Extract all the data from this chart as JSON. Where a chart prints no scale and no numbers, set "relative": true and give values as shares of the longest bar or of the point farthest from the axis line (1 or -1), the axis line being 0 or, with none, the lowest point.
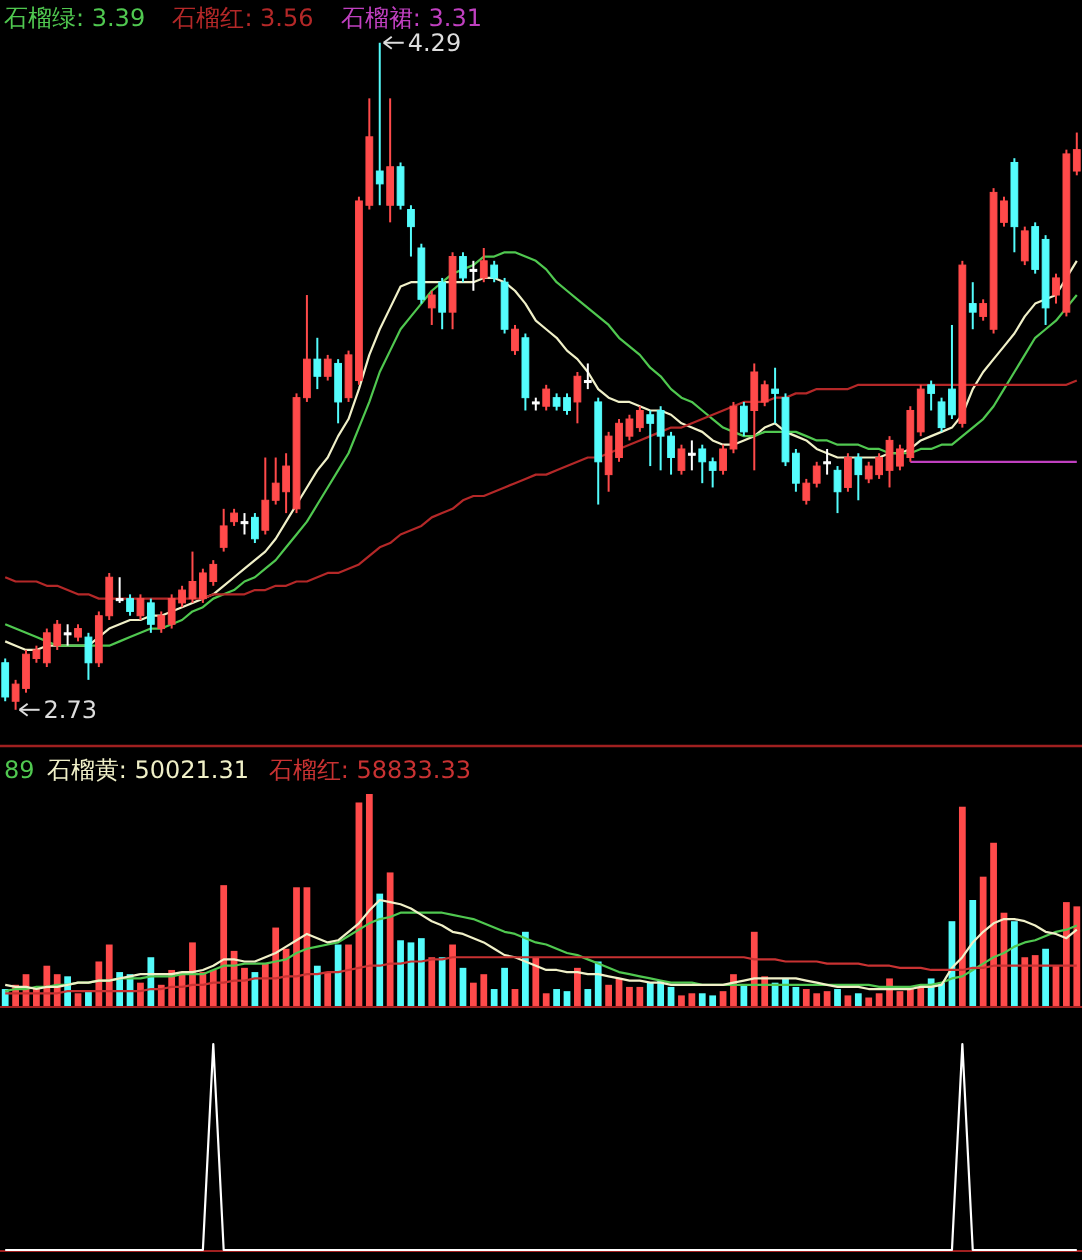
{
  "chart_data": [
    {
      "type": "candlestick",
      "ylim": [
        2.65,
        4.39
      ],
      "categories": [
        null,
        null,
        null,
        null,
        null,
        null,
        null,
        null,
        null,
        null,
        null,
        null,
        null,
        null,
        null,
        null,
        null,
        null,
        null,
        null,
        null,
        null,
        null,
        null,
        null,
        null,
        null,
        null,
        null,
        null,
        null,
        null,
        null,
        null,
        null,
        null,
        null,
        null,
        null,
        null,
        null,
        null,
        null,
        null,
        null,
        null,
        null,
        null,
        null,
        null,
        null,
        null,
        null,
        null,
        null,
        null,
        null,
        null,
        null,
        null,
        null,
        null,
        null,
        null,
        null,
        null,
        null,
        null,
        null,
        null,
        null,
        null,
        null,
        null,
        null,
        null,
        null,
        null,
        null,
        null,
        null,
        null,
        null,
        null,
        null,
        null,
        null,
        null,
        null,
        null,
        null,
        null,
        null,
        null,
        null,
        null,
        null,
        null,
        null,
        null,
        null,
        null,
        null,
        null
      ],
      "ohlc": [
        [
          2.84,
          2.85,
          2.75,
          2.76
        ],
        [
          2.75,
          2.8,
          2.73,
          2.79
        ],
        [
          2.78,
          2.87,
          2.77,
          2.86
        ],
        [
          2.85,
          2.88,
          2.84,
          2.87
        ],
        [
          2.84,
          2.92,
          2.83,
          2.91
        ],
        [
          2.88,
          2.94,
          2.87,
          2.93
        ],
        [
          2.91,
          2.93,
          2.88,
          2.91
        ],
        [
          2.9,
          2.93,
          2.89,
          2.92
        ],
        [
          2.9,
          2.91,
          2.8,
          2.84
        ],
        [
          2.84,
          2.96,
          2.83,
          2.95
        ],
        [
          2.95,
          3.05,
          2.94,
          3.04
        ],
        [
          2.99,
          3.04,
          2.98,
          2.99
        ],
        [
          2.99,
          3.0,
          2.95,
          2.96
        ],
        [
          2.95,
          3.0,
          2.94,
          2.99
        ],
        [
          2.98,
          2.99,
          2.91,
          2.93
        ],
        [
          2.92,
          2.96,
          2.91,
          2.95
        ],
        [
          2.93,
          3.0,
          2.92,
          2.99
        ],
        [
          2.98,
          3.02,
          2.97,
          3.01
        ],
        [
          2.99,
          3.1,
          2.98,
          3.03
        ],
        [
          2.99,
          3.06,
          2.98,
          3.05
        ],
        [
          3.03,
          3.08,
          3.02,
          3.07
        ],
        [
          3.11,
          3.2,
          3.1,
          3.16
        ],
        [
          3.17,
          3.2,
          3.16,
          3.19
        ],
        [
          3.17,
          3.19,
          3.14,
          3.17
        ],
        [
          3.18,
          3.19,
          3.12,
          3.13
        ],
        [
          3.15,
          3.32,
          3.14,
          3.22
        ],
        [
          3.22,
          3.32,
          3.21,
          3.26
        ],
        [
          3.24,
          3.33,
          3.19,
          3.3
        ],
        [
          3.2,
          3.47,
          3.19,
          3.46
        ],
        [
          3.46,
          3.7,
          3.45,
          3.55
        ],
        [
          3.55,
          3.6,
          3.48,
          3.51
        ],
        [
          3.51,
          3.56,
          3.5,
          3.55
        ],
        [
          3.54,
          3.55,
          3.4,
          3.45
        ],
        [
          3.46,
          3.57,
          3.45,
          3.56
        ],
        [
          3.5,
          3.93,
          3.49,
          3.92
        ],
        [
          3.91,
          4.16,
          3.9,
          4.07
        ],
        [
          3.99,
          4.29,
          3.91,
          3.96
        ],
        [
          3.91,
          4.16,
          3.87,
          4.0
        ],
        [
          4.0,
          4.01,
          3.9,
          3.91
        ],
        [
          3.9,
          3.91,
          3.79,
          3.86
        ],
        [
          3.81,
          3.82,
          3.68,
          3.69
        ],
        [
          3.67,
          3.71,
          3.63,
          3.7
        ],
        [
          3.73,
          3.74,
          3.62,
          3.66
        ],
        [
          3.66,
          3.8,
          3.62,
          3.79
        ],
        [
          3.79,
          3.8,
          3.73,
          3.74
        ],
        [
          3.76,
          3.78,
          3.71,
          3.76
        ],
        [
          3.74,
          3.81,
          3.73,
          3.78
        ],
        [
          3.77,
          3.78,
          3.73,
          3.74
        ],
        [
          3.73,
          3.74,
          3.61,
          3.62
        ],
        [
          3.57,
          3.63,
          3.56,
          3.62
        ],
        [
          3.6,
          3.61,
          3.43,
          3.46
        ],
        [
          3.45,
          3.46,
          3.43,
          3.45
        ],
        [
          3.44,
          3.49,
          3.43,
          3.48
        ],
        [
          3.46,
          3.47,
          3.43,
          3.44
        ],
        [
          3.46,
          3.47,
          3.42,
          3.43
        ],
        [
          3.45,
          3.52,
          3.4,
          3.51
        ],
        [
          3.5,
          3.54,
          3.48,
          3.5
        ],
        [
          3.45,
          3.46,
          3.21,
          3.31
        ],
        [
          3.28,
          3.38,
          3.24,
          3.37
        ],
        [
          3.32,
          3.41,
          3.31,
          3.4
        ],
        [
          3.37,
          3.42,
          3.36,
          3.41
        ],
        [
          3.39,
          3.44,
          3.38,
          3.43
        ],
        [
          3.42,
          3.43,
          3.3,
          3.4
        ],
        [
          3.43,
          3.44,
          3.29,
          3.37
        ],
        [
          3.37,
          3.38,
          3.28,
          3.32
        ],
        [
          3.29,
          3.35,
          3.28,
          3.34
        ],
        [
          3.33,
          3.36,
          3.29,
          3.33
        ],
        [
          3.34,
          3.35,
          3.26,
          3.31
        ],
        [
          3.31,
          3.32,
          3.25,
          3.29
        ],
        [
          3.29,
          3.35,
          3.28,
          3.34
        ],
        [
          3.34,
          3.45,
          3.33,
          3.44
        ],
        [
          3.44,
          3.45,
          3.37,
          3.38
        ],
        [
          3.43,
          3.54,
          3.29,
          3.52
        ],
        [
          3.45,
          3.5,
          3.44,
          3.49
        ],
        [
          3.48,
          3.53,
          3.4,
          3.47
        ],
        [
          3.46,
          3.47,
          3.3,
          3.31
        ],
        [
          3.33,
          3.34,
          3.24,
          3.26
        ],
        [
          3.22,
          3.27,
          3.21,
          3.26
        ],
        [
          3.26,
          3.31,
          3.25,
          3.3
        ],
        [
          3.31,
          3.34,
          3.28,
          3.31
        ],
        [
          3.29,
          3.3,
          3.19,
          3.24
        ],
        [
          3.25,
          3.33,
          3.24,
          3.32
        ],
        [
          3.32,
          3.33,
          3.22,
          3.28
        ],
        [
          3.27,
          3.31,
          3.26,
          3.3
        ],
        [
          3.28,
          3.33,
          3.27,
          3.32
        ],
        [
          3.29,
          3.37,
          3.25,
          3.36
        ],
        [
          3.3,
          3.35,
          3.29,
          3.34
        ],
        [
          3.32,
          3.44,
          3.31,
          3.43
        ],
        [
          3.38,
          3.49,
          3.37,
          3.48
        ],
        [
          3.49,
          3.5,
          3.43,
          3.47
        ],
        [
          3.45,
          3.46,
          3.38,
          3.39
        ],
        [
          3.48,
          3.63,
          3.41,
          3.42
        ],
        [
          3.4,
          3.78,
          3.39,
          3.77
        ],
        [
          3.68,
          3.73,
          3.62,
          3.66
        ],
        [
          3.65,
          3.69,
          3.64,
          3.68
        ],
        [
          3.62,
          3.95,
          3.61,
          3.94
        ],
        [
          3.87,
          3.93,
          3.86,
          3.92
        ],
        [
          4.01,
          4.02,
          3.8,
          3.86
        ],
        [
          3.78,
          3.86,
          3.77,
          3.85
        ],
        [
          3.86,
          3.87,
          3.75,
          3.76
        ],
        [
          3.83,
          3.84,
          3.63,
          3.67
        ],
        [
          3.7,
          3.75,
          3.68,
          3.74
        ],
        [
          3.66,
          4.04,
          3.65,
          4.03
        ],
        [
          3.99,
          4.08,
          3.98,
          4.04
        ]
      ],
      "series": [
        {
          "type": "line",
          "color": "#f0f0c8",
          "values": [
            2.89,
            2.88,
            2.87,
            2.87,
            2.88,
            2.88,
            2.88,
            2.88,
            2.88,
            2.9,
            2.92,
            2.93,
            2.94,
            2.94,
            2.95,
            2.95,
            2.96,
            2.97,
            2.98,
            2.99,
            3.0,
            3.02,
            3.04,
            3.06,
            3.08,
            3.1,
            3.13,
            3.17,
            3.21,
            3.25,
            3.29,
            3.32,
            3.37,
            3.41,
            3.48,
            3.56,
            3.62,
            3.67,
            3.72,
            3.73,
            3.73,
            3.73,
            3.73,
            3.73,
            3.73,
            3.73,
            3.74,
            3.74,
            3.73,
            3.71,
            3.68,
            3.64,
            3.62,
            3.6,
            3.57,
            3.55,
            3.52,
            3.48,
            3.46,
            3.45,
            3.45,
            3.44,
            3.43,
            3.43,
            3.42,
            3.4,
            3.39,
            3.38,
            3.36,
            3.35,
            3.35,
            3.36,
            3.37,
            3.39,
            3.4,
            3.38,
            3.37,
            3.36,
            3.34,
            3.33,
            3.32,
            3.32,
            3.32,
            3.32,
            3.32,
            3.33,
            3.33,
            3.34,
            3.36,
            3.37,
            3.38,
            3.39,
            3.42,
            3.48,
            3.52,
            3.55,
            3.58,
            3.61,
            3.65,
            3.68,
            3.69,
            3.7,
            3.74,
            3.78
          ]
        },
        {
          "type": "line",
          "name": "石榴绿: 3.39",
          "color": "#50c850",
          "values": [
            2.93,
            2.92,
            2.91,
            2.9,
            2.89,
            2.88,
            2.88,
            2.88,
            2.88,
            2.88,
            2.88,
            2.89,
            2.9,
            2.91,
            2.92,
            2.92,
            2.93,
            2.94,
            2.96,
            2.97,
            2.99,
            3.0,
            3.01,
            3.03,
            3.04,
            3.06,
            3.08,
            3.11,
            3.14,
            3.17,
            3.21,
            3.25,
            3.29,
            3.33,
            3.39,
            3.45,
            3.52,
            3.57,
            3.62,
            3.65,
            3.68,
            3.71,
            3.73,
            3.75,
            3.76,
            3.77,
            3.79,
            3.79,
            3.8,
            3.8,
            3.79,
            3.78,
            3.76,
            3.73,
            3.71,
            3.69,
            3.67,
            3.65,
            3.63,
            3.6,
            3.58,
            3.56,
            3.53,
            3.51,
            3.48,
            3.46,
            3.45,
            3.43,
            3.41,
            3.39,
            3.38,
            3.37,
            3.37,
            3.38,
            3.38,
            3.38,
            3.38,
            3.37,
            3.36,
            3.36,
            3.35,
            3.35,
            3.35,
            3.34,
            3.34,
            3.33,
            3.33,
            3.33,
            3.34,
            3.34,
            3.35,
            3.35,
            3.37,
            3.39,
            3.41,
            3.44,
            3.48,
            3.52,
            3.56,
            3.6,
            3.62,
            3.64,
            3.67,
            3.7
          ]
        },
        {
          "type": "line",
          "name": "石榴红: 3.56",
          "color": "#b42828",
          "values": [
            3.04,
            3.03,
            3.03,
            3.03,
            3.02,
            3.02,
            3.01,
            3.0,
            3.0,
            2.99,
            2.99,
            2.99,
            2.99,
            2.99,
            2.99,
            2.99,
            2.99,
            2.99,
            2.99,
            2.99,
            3.0,
            3.0,
            3.0,
            3.0,
            3.01,
            3.01,
            3.02,
            3.02,
            3.03,
            3.03,
            3.04,
            3.05,
            3.05,
            3.06,
            3.07,
            3.09,
            3.11,
            3.12,
            3.14,
            3.15,
            3.16,
            3.18,
            3.19,
            3.2,
            3.22,
            3.23,
            3.23,
            3.24,
            3.25,
            3.26,
            3.27,
            3.28,
            3.28,
            3.29,
            3.3,
            3.31,
            3.32,
            3.32,
            3.33,
            3.34,
            3.35,
            3.36,
            3.37,
            3.38,
            3.39,
            3.39,
            3.4,
            3.41,
            3.42,
            3.43,
            3.44,
            3.45,
            3.45,
            3.45,
            3.46,
            3.46,
            3.47,
            3.47,
            3.48,
            3.48,
            3.48,
            3.48,
            3.49,
            3.49,
            3.49,
            3.49,
            3.49,
            3.49,
            3.49,
            3.49,
            3.49,
            3.49,
            3.49,
            3.49,
            3.49,
            3.49,
            3.49,
            3.49,
            3.49,
            3.49,
            3.49,
            3.49,
            3.49,
            3.5
          ]
        },
        {
          "type": "line",
          "name": "石榴裙: 3.31",
          "color": "#c040c0",
          "values": [
            null,
            null,
            null,
            null,
            null,
            null,
            null,
            null,
            null,
            null,
            null,
            null,
            null,
            null,
            null,
            null,
            null,
            null,
            null,
            null,
            null,
            null,
            null,
            null,
            null,
            null,
            null,
            null,
            null,
            null,
            null,
            null,
            null,
            null,
            null,
            null,
            null,
            null,
            null,
            null,
            null,
            null,
            null,
            null,
            null,
            null,
            null,
            null,
            null,
            null,
            null,
            null,
            null,
            null,
            null,
            null,
            null,
            null,
            null,
            null,
            null,
            null,
            null,
            null,
            null,
            null,
            null,
            null,
            null,
            null,
            null,
            null,
            null,
            null,
            null,
            null,
            null,
            null,
            null,
            null,
            null,
            null,
            null,
            null,
            null,
            null,
            null,
            3.31,
            3.31,
            3.31,
            3.31,
            3.31,
            3.31,
            3.31,
            3.31,
            3.31,
            3.31,
            3.31,
            3.31,
            3.31,
            3.31,
            3.31,
            3.31,
            3.31
          ]
        }
      ],
      "annotations": [
        "4.29",
        "2.73"
      ]
    },
    {
      "type": "bar",
      "relative": true,
      "categories": [
        null,
        null,
        null,
        null,
        null,
        null,
        null,
        null,
        null,
        null,
        null,
        null,
        null,
        null,
        null,
        null,
        null,
        null,
        null,
        null,
        null,
        null,
        null,
        null,
        null,
        null,
        null,
        null,
        null,
        null,
        null,
        null,
        null,
        null,
        null,
        null,
        null,
        null,
        null,
        null,
        null,
        null,
        null,
        null,
        null,
        null,
        null,
        null,
        null,
        null,
        null,
        null,
        null,
        null,
        null,
        null,
        null,
        null,
        null,
        null,
        null,
        null,
        null,
        null,
        null,
        null,
        null,
        null,
        null,
        null,
        null,
        null,
        null,
        null,
        null,
        null,
        null,
        null,
        null,
        null,
        null,
        null,
        null,
        null,
        null,
        null,
        null,
        null,
        null,
        null,
        null,
        null,
        null,
        null,
        null,
        null,
        null,
        null,
        null,
        null,
        null,
        null,
        null,
        null
      ],
      "series": [
        {
          "values": [
            0.08,
            0.1,
            0.15,
            0.08,
            0.19,
            0.15,
            0.14,
            0.06,
            0.07,
            0.21,
            0.29,
            0.16,
            0.15,
            0.11,
            0.23,
            0.1,
            0.17,
            0.15,
            0.3,
            0.16,
            0.17,
            0.57,
            0.26,
            0.18,
            0.16,
            0.2,
            0.37,
            0.27,
            0.56,
            0.56,
            0.19,
            0.16,
            0.29,
            0.29,
            0.96,
            1,
            0.53,
            0.63,
            0.31,
            0.3,
            0.32,
            0.23,
            0.23,
            0.29,
            0.18,
            0.11,
            0.15,
            0.08,
            0.18,
            0.08,
            0.35,
            0.23,
            0.06,
            0.08,
            0.07,
            0.18,
            0.08,
            0.21,
            0.1,
            0.13,
            0.09,
            0.09,
            0.11,
            0.12,
            0.09,
            0.05,
            0.06,
            0.06,
            0.05,
            0.07,
            0.15,
            0.1,
            0.35,
            0.14,
            0.11,
            0.13,
            0.09,
            0.08,
            0.06,
            0.07,
            0.08,
            0.05,
            0.06,
            0.04,
            0.06,
            0.13,
            0.07,
            0.08,
            0.09,
            0.13,
            0.11,
            0.4,
            0.94,
            0.5,
            0.61,
            0.77,
            0.44,
            0.4,
            0.23,
            0.24,
            0.27,
            0.19,
            0.49,
            0.47
          ],
          "colors": [
            "#54fcfc",
            "#ff4a4a",
            "#ff4a4a",
            "#ff4a4a",
            "#ff4a4a",
            "#ff4a4a",
            "#54fcfc",
            "#ff4a4a",
            "#54fcfc",
            "#ff4a4a",
            "#ff4a4a",
            "#54fcfc",
            "#54fcfc",
            "#ff4a4a",
            "#54fcfc",
            "#ff4a4a",
            "#ff4a4a",
            "#ff4a4a",
            "#ff4a4a",
            "#ff4a4a",
            "#ff4a4a",
            "#ff4a4a",
            "#ff4a4a",
            "#ff4a4a",
            "#54fcfc",
            "#ff4a4a",
            "#ff4a4a",
            "#ff4a4a",
            "#ff4a4a",
            "#ff4a4a",
            "#54fcfc",
            "#ff4a4a",
            "#54fcfc",
            "#ff4a4a",
            "#ff4a4a",
            "#ff4a4a",
            "#54fcfc",
            "#ff4a4a",
            "#54fcfc",
            "#54fcfc",
            "#54fcfc",
            "#ff4a4a",
            "#54fcfc",
            "#ff4a4a",
            "#54fcfc",
            "#ff4a4a",
            "#ff4a4a",
            "#54fcfc",
            "#54fcfc",
            "#ff4a4a",
            "#54fcfc",
            "#ff4a4a",
            "#ff4a4a",
            "#54fcfc",
            "#54fcfc",
            "#ff4a4a",
            "#54fcfc",
            "#54fcfc",
            "#ff4a4a",
            "#ff4a4a",
            "#ff4a4a",
            "#ff4a4a",
            "#54fcfc",
            "#54fcfc",
            "#54fcfc",
            "#ff4a4a",
            "#ff4a4a",
            "#54fcfc",
            "#54fcfc",
            "#ff4a4a",
            "#ff4a4a",
            "#54fcfc",
            "#ff4a4a",
            "#ff4a4a",
            "#54fcfc",
            "#54fcfc",
            "#54fcfc",
            "#ff4a4a",
            "#ff4a4a",
            "#ff4a4a",
            "#54fcfc",
            "#ff4a4a",
            "#54fcfc",
            "#ff4a4a",
            "#ff4a4a",
            "#ff4a4a",
            "#ff4a4a",
            "#ff4a4a",
            "#ff4a4a",
            "#54fcfc",
            "#54fcfc",
            "#54fcfc",
            "#ff4a4a",
            "#54fcfc",
            "#ff4a4a",
            "#ff4a4a",
            "#ff4a4a",
            "#54fcfc",
            "#ff4a4a",
            "#ff4a4a",
            "#54fcfc",
            "#ff4a4a",
            "#ff4a4a",
            "#ff4a4a"
          ]
        },
        {
          "type": "line",
          "name": "89",
          "color": "#50c850",
          "values": [
            0.07,
            0.08,
            0.08,
            0.09,
            0.09,
            0.1,
            0.1,
            0.11,
            0.11,
            0.12,
            0.12,
            0.13,
            0.13,
            0.13,
            0.14,
            0.14,
            0.14,
            0.15,
            0.15,
            0.15,
            0.17,
            0.19,
            0.19,
            0.2,
            0.2,
            0.2,
            0.21,
            0.22,
            0.25,
            0.27,
            0.28,
            0.29,
            0.3,
            0.33,
            0.36,
            0.39,
            0.41,
            0.42,
            0.44,
            0.44,
            0.44,
            0.44,
            0.44,
            0.43,
            0.42,
            0.41,
            0.39,
            0.37,
            0.35,
            0.34,
            0.32,
            0.3,
            0.29,
            0.27,
            0.25,
            0.24,
            0.22,
            0.2,
            0.18,
            0.16,
            0.15,
            0.14,
            0.13,
            0.12,
            0.11,
            0.11,
            0.11,
            0.1,
            0.1,
            0.1,
            0.1,
            0.1,
            0.1,
            0.1,
            0.1,
            0.1,
            0.1,
            0.1,
            0.1,
            0.1,
            0.1,
            0.1,
            0.1,
            0.1,
            0.09,
            0.09,
            0.09,
            0.09,
            0.1,
            0.1,
            0.11,
            0.13,
            0.14,
            0.17,
            0.2,
            0.23,
            0.25,
            0.28,
            0.3,
            0.31,
            0.33,
            0.35,
            0.36,
            0.38
          ]
        },
        {
          "type": "line",
          "name": "石榴黄: 50021.31",
          "color": "#f0f0c8",
          "values": [
            0.1,
            0.09,
            0.09,
            0.08,
            0.09,
            0.09,
            0.1,
            0.11,
            0.11,
            0.12,
            0.12,
            0.13,
            0.14,
            0.15,
            0.15,
            0.15,
            0.15,
            0.16,
            0.16,
            0.17,
            0.19,
            0.22,
            0.22,
            0.21,
            0.21,
            0.23,
            0.25,
            0.28,
            0.31,
            0.34,
            0.32,
            0.3,
            0.31,
            0.35,
            0.39,
            0.45,
            0.5,
            0.49,
            0.48,
            0.46,
            0.43,
            0.4,
            0.38,
            0.35,
            0.34,
            0.32,
            0.3,
            0.27,
            0.24,
            0.23,
            0.21,
            0.19,
            0.17,
            0.17,
            0.16,
            0.16,
            0.15,
            0.15,
            0.14,
            0.13,
            0.12,
            0.12,
            0.11,
            0.11,
            0.1,
            0.1,
            0.1,
            0.1,
            0.1,
            0.1,
            0.11,
            0.12,
            0.13,
            0.13,
            0.13,
            0.13,
            0.13,
            0.12,
            0.11,
            0.1,
            0.09,
            0.09,
            0.09,
            0.08,
            0.08,
            0.08,
            0.08,
            0.08,
            0.09,
            0.09,
            0.1,
            0.18,
            0.23,
            0.3,
            0.35,
            0.39,
            0.41,
            0.41,
            0.4,
            0.38,
            0.35,
            0.34,
            0.32,
            0.36
          ]
        },
        {
          "type": "line",
          "name": "石榴红: 58833.33",
          "color": "#c83232",
          "values": [
            0.06,
            0.06,
            0.06,
            0.06,
            0.06,
            0.06,
            0.07,
            0.07,
            0.07,
            0.07,
            0.07,
            0.07,
            0.07,
            0.07,
            0.08,
            0.08,
            0.09,
            0.09,
            0.1,
            0.1,
            0.11,
            0.11,
            0.12,
            0.12,
            0.13,
            0.13,
            0.13,
            0.14,
            0.14,
            0.15,
            0.15,
            0.16,
            0.16,
            0.17,
            0.18,
            0.19,
            0.19,
            0.2,
            0.2,
            0.21,
            0.21,
            0.22,
            0.22,
            0.23,
            0.23,
            0.23,
            0.23,
            0.23,
            0.23,
            0.23,
            0.23,
            0.23,
            0.23,
            0.23,
            0.23,
            0.23,
            0.23,
            0.23,
            0.23,
            0.23,
            0.23,
            0.23,
            0.23,
            0.23,
            0.23,
            0.23,
            0.23,
            0.23,
            0.23,
            0.23,
            0.23,
            0.23,
            0.22,
            0.22,
            0.22,
            0.21,
            0.21,
            0.21,
            0.21,
            0.2,
            0.2,
            0.2,
            0.2,
            0.19,
            0.19,
            0.19,
            0.18,
            0.18,
            0.18,
            0.17,
            0.17,
            0.17,
            0.17,
            0.18,
            0.18,
            0.19,
            0.19,
            0.19,
            0.19,
            0.19,
            0.19,
            0.19,
            0.19,
            0.19
          ]
        }
      ]
    },
    {
      "type": "line",
      "relative": true,
      "categories": [
        null,
        null,
        null,
        null,
        null,
        null,
        null,
        null,
        null,
        null,
        null,
        null,
        null,
        null,
        null,
        null,
        null,
        null,
        null,
        null,
        null,
        null,
        null,
        null,
        null,
        null,
        null,
        null,
        null,
        null,
        null,
        null,
        null,
        null,
        null,
        null,
        null,
        null,
        null,
        null,
        null,
        null,
        null,
        null,
        null,
        null,
        null,
        null,
        null,
        null,
        null,
        null,
        null,
        null,
        null,
        null,
        null,
        null,
        null,
        null,
        null,
        null,
        null,
        null,
        null,
        null,
        null,
        null,
        null,
        null,
        null,
        null,
        null,
        null,
        null,
        null,
        null,
        null,
        null,
        null,
        null,
        null,
        null,
        null,
        null,
        null,
        null,
        null,
        null,
        null,
        null,
        null,
        null,
        null,
        null,
        null,
        null,
        null,
        null,
        null,
        null,
        null,
        null,
        null
      ],
      "series": [
        {
          "color": "#ffffff",
          "values": [
            0,
            0,
            0,
            0,
            0,
            0,
            0,
            0,
            0,
            0,
            0,
            0,
            0,
            0,
            0,
            0,
            0,
            0,
            0,
            0,
            1,
            0,
            0,
            0,
            0,
            0,
            0,
            0,
            0,
            0,
            0,
            0,
            0,
            0,
            0,
            0,
            0,
            0,
            0,
            0,
            0,
            0,
            0,
            0,
            0,
            0,
            0,
            0,
            0,
            0,
            0,
            0,
            0,
            0,
            0,
            0,
            0,
            0,
            0,
            0,
            0,
            0,
            0,
            0,
            0,
            0,
            0,
            0,
            0,
            0,
            0,
            0,
            0,
            0,
            0,
            0,
            0,
            0,
            0,
            0,
            0,
            0,
            0,
            0,
            0,
            0,
            0,
            0,
            0,
            0,
            0,
            0,
            1,
            0,
            0,
            0,
            0,
            0,
            0,
            0,
            0,
            0,
            0,
            0
          ]
        }
      ]
    }
  ]
}
